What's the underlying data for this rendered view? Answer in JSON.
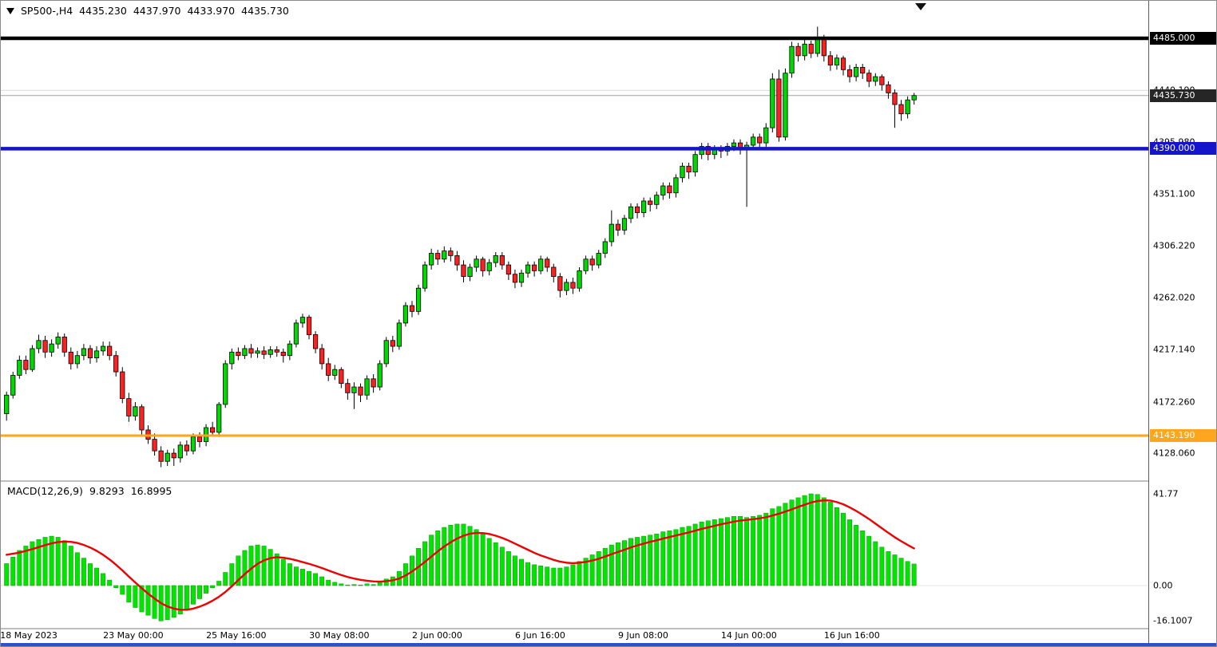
{
  "header": {
    "symbol_period": "SP500-,H4",
    "open": "4435.230",
    "high": "4437.970",
    "low": "4433.970",
    "close": "4435.730"
  },
  "macd_header": {
    "label": "MACD(12,26,9)",
    "main_value": "9.8293",
    "signal_value": "16.8995"
  },
  "price_axis": {
    "plain_labels": [
      {
        "text": "4440.190",
        "price": 4440.19
      },
      {
        "text": "4395.980",
        "price": 4395.98
      },
      {
        "text": "4351.100",
        "price": 4351.1
      },
      {
        "text": "4306.220",
        "price": 4306.22
      },
      {
        "text": "4262.020",
        "price": 4262.02
      },
      {
        "text": "4217.140",
        "price": 4217.14
      },
      {
        "text": "4172.260",
        "price": 4172.26
      },
      {
        "text": "4128.060",
        "price": 4128.06
      }
    ],
    "tags": [
      {
        "text": "4485.000",
        "price": 4485.0,
        "bg": "#000000"
      },
      {
        "text": "4435.730",
        "price": 4435.73,
        "bg": "#262626"
      },
      {
        "text": "4390.000",
        "price": 4390.0,
        "bg": "#1414cc"
      },
      {
        "text": "4143.190",
        "price": 4143.19,
        "bg": "#ffa51e"
      }
    ]
  },
  "macd_axis": {
    "labels": [
      {
        "text": "41.77",
        "value": 41.77
      },
      {
        "text": "0.00",
        "value": 0.0
      },
      {
        "text": "-16.1007",
        "value": -16.1007
      }
    ]
  },
  "time_axis": {
    "labels": [
      {
        "text": "18 May 2023",
        "bar": 0
      },
      {
        "text": "23 May 00:00",
        "bar": 16
      },
      {
        "text": "25 May 16:00",
        "bar": 32
      },
      {
        "text": "30 May 08:00",
        "bar": 48
      },
      {
        "text": "2 Jun 00:00",
        "bar": 64
      },
      {
        "text": "6 Jun 16:00",
        "bar": 80
      },
      {
        "text": "9 Jun 08:00",
        "bar": 96
      },
      {
        "text": "14 Jun 00:00",
        "bar": 112
      },
      {
        "text": "16 Jun 16:00",
        "bar": 128
      }
    ]
  },
  "colors": {
    "background": "#ffffff",
    "candle_up": "#00d900",
    "candle_down": "#ff2020",
    "candle_outline": "#000000",
    "macd_histogram": "#00e400",
    "macd_histogram_edge": "#00a000",
    "macd_signal": "#ee0000",
    "hline_black": "#000000",
    "hline_blue": "#1414cc",
    "hline_orange": "#ffa51e",
    "current_price_line": "#a0a0a0",
    "gridline": "#d8d8d8",
    "separator": "#7d7d7d",
    "tag_text": "#ffffff",
    "bottom_bar": "#2e4fd2"
  },
  "chart_data": {
    "type": "candlestick",
    "symbol": "SP500-",
    "timeframe": "H4",
    "title": "SP500-,H4 4435.230 4437.970 4433.970 4435.730",
    "current_price": 4435.73,
    "current_bar": {
      "open": 4435.23,
      "high": 4437.97,
      "low": 4433.97,
      "close": 4435.73
    },
    "visible_price_range": {
      "high": 4517,
      "low": 4104
    },
    "x_range": {
      "start": "18 May 2023",
      "end": "20 Jun 2023",
      "bars_visible": 142
    },
    "horizontal_lines": [
      {
        "price": 4485.0,
        "color": "#000000",
        "width": 4.5,
        "label": "4485.000"
      },
      {
        "price": 4390.0,
        "color": "#1414cc",
        "width": 4.5,
        "label": "4390.000"
      },
      {
        "price": 4143.19,
        "color": "#ffa51e",
        "width": 3,
        "label": "4143.190"
      }
    ],
    "candles": [
      [
        4162,
        4181,
        4156,
        4178
      ],
      [
        4178,
        4198,
        4175,
        4195
      ],
      [
        4195,
        4212,
        4192,
        4208
      ],
      [
        4208,
        4212,
        4196,
        4200
      ],
      [
        4200,
        4221,
        4198,
        4218
      ],
      [
        4218,
        4230,
        4214,
        4225
      ],
      [
        4225,
        4229,
        4210,
        4215
      ],
      [
        4215,
        4226,
        4211,
        4222
      ],
      [
        4222,
        4232,
        4218,
        4228
      ],
      [
        4228,
        4231,
        4211,
        4215
      ],
      [
        4215,
        4219,
        4200,
        4205
      ],
      [
        4205,
        4216,
        4201,
        4212
      ],
      [
        4212,
        4222,
        4208,
        4218
      ],
      [
        4218,
        4221,
        4205,
        4210
      ],
      [
        4210,
        4220,
        4206,
        4216
      ],
      [
        4216,
        4224,
        4212,
        4220
      ],
      [
        4220,
        4224,
        4208,
        4212
      ],
      [
        4212,
        4216,
        4194,
        4198
      ],
      [
        4198,
        4202,
        4171,
        4175
      ],
      [
        4175,
        4180,
        4155,
        4160
      ],
      [
        4160,
        4172,
        4156,
        4168
      ],
      [
        4168,
        4170,
        4144,
        4148
      ],
      [
        4148,
        4152,
        4136,
        4140
      ],
      [
        4140,
        4145,
        4126,
        4130
      ],
      [
        4130,
        4134,
        4116,
        4121
      ],
      [
        4121,
        4131,
        4117,
        4128
      ],
      [
        4128,
        4132,
        4117,
        4124
      ],
      [
        4124,
        4138,
        4120,
        4135
      ],
      [
        4135,
        4139,
        4126,
        4130
      ],
      [
        4130,
        4145,
        4127,
        4142
      ],
      [
        4142,
        4146,
        4133,
        4138
      ],
      [
        4138,
        4153,
        4134,
        4150
      ],
      [
        4150,
        4155,
        4143,
        4146
      ],
      [
        4146,
        4172,
        4142,
        4170
      ],
      [
        4170,
        4208,
        4167,
        4205
      ],
      [
        4205,
        4218,
        4200,
        4215
      ],
      [
        4215,
        4219,
        4208,
        4212
      ],
      [
        4212,
        4221,
        4209,
        4218
      ],
      [
        4218,
        4222,
        4210,
        4214
      ],
      [
        4214,
        4219,
        4210,
        4216
      ],
      [
        4216,
        4220,
        4209,
        4213
      ],
      [
        4213,
        4220,
        4210,
        4217
      ],
      [
        4217,
        4220,
        4211,
        4215
      ],
      [
        4215,
        4218,
        4206,
        4212
      ],
      [
        4212,
        4225,
        4208,
        4222
      ],
      [
        4222,
        4243,
        4219,
        4240
      ],
      [
        4240,
        4248,
        4236,
        4245
      ],
      [
        4245,
        4247,
        4226,
        4230
      ],
      [
        4230,
        4233,
        4214,
        4218
      ],
      [
        4218,
        4222,
        4200,
        4205
      ],
      [
        4205,
        4210,
        4190,
        4195
      ],
      [
        4195,
        4204,
        4191,
        4200
      ],
      [
        4200,
        4202,
        4184,
        4188
      ],
      [
        4188,
        4192,
        4174,
        4180
      ],
      [
        4180,
        4189,
        4166,
        4185
      ],
      [
        4185,
        4188,
        4172,
        4178
      ],
      [
        4178,
        4195,
        4174,
        4192
      ],
      [
        4192,
        4196,
        4180,
        4185
      ],
      [
        4185,
        4208,
        4182,
        4205
      ],
      [
        4205,
        4228,
        4202,
        4225
      ],
      [
        4225,
        4229,
        4215,
        4220
      ],
      [
        4220,
        4243,
        4217,
        4240
      ],
      [
        4240,
        4258,
        4237,
        4255
      ],
      [
        4255,
        4259,
        4245,
        4250
      ],
      [
        4250,
        4273,
        4247,
        4270
      ],
      [
        4270,
        4293,
        4267,
        4290
      ],
      [
        4290,
        4304,
        4286,
        4300
      ],
      [
        4300,
        4303,
        4290,
        4295
      ],
      [
        4295,
        4306,
        4292,
        4302
      ],
      [
        4302,
        4305,
        4293,
        4298
      ],
      [
        4298,
        4302,
        4285,
        4290
      ],
      [
        4290,
        4294,
        4275,
        4280
      ],
      [
        4280,
        4291,
        4276,
        4288
      ],
      [
        4288,
        4298,
        4284,
        4295
      ],
      [
        4295,
        4297,
        4280,
        4285
      ],
      [
        4285,
        4295,
        4281,
        4292
      ],
      [
        4292,
        4301,
        4288,
        4298
      ],
      [
        4298,
        4301,
        4286,
        4290
      ],
      [
        4290,
        4293,
        4277,
        4282
      ],
      [
        4282,
        4286,
        4270,
        4275
      ],
      [
        4275,
        4286,
        4271,
        4283
      ],
      [
        4283,
        4293,
        4279,
        4290
      ],
      [
        4290,
        4293,
        4280,
        4285
      ],
      [
        4285,
        4298,
        4282,
        4295
      ],
      [
        4295,
        4297,
        4284,
        4288
      ],
      [
        4288,
        4291,
        4275,
        4280
      ],
      [
        4280,
        4283,
        4262,
        4268
      ],
      [
        4268,
        4278,
        4264,
        4275
      ],
      [
        4275,
        4279,
        4265,
        4270
      ],
      [
        4270,
        4288,
        4267,
        4285
      ],
      [
        4285,
        4298,
        4282,
        4295
      ],
      [
        4295,
        4298,
        4285,
        4290
      ],
      [
        4290,
        4303,
        4287,
        4300
      ],
      [
        4300,
        4313,
        4296,
        4310
      ],
      [
        4310,
        4337,
        4306,
        4325
      ],
      [
        4325,
        4329,
        4315,
        4320
      ],
      [
        4320,
        4333,
        4316,
        4330
      ],
      [
        4330,
        4343,
        4326,
        4340
      ],
      [
        4340,
        4343,
        4330,
        4335
      ],
      [
        4335,
        4348,
        4331,
        4345
      ],
      [
        4345,
        4348,
        4336,
        4342
      ],
      [
        4342,
        4353,
        4338,
        4350
      ],
      [
        4350,
        4361,
        4346,
        4358
      ],
      [
        4358,
        4361,
        4347,
        4352
      ],
      [
        4352,
        4368,
        4348,
        4365
      ],
      [
        4365,
        4378,
        4361,
        4375
      ],
      [
        4375,
        4378,
        4364,
        4370
      ],
      [
        4370,
        4388,
        4366,
        4385
      ],
      [
        4385,
        4395,
        4381,
        4392
      ],
      [
        4392,
        4395,
        4380,
        4385
      ],
      [
        4385,
        4393,
        4381,
        4390
      ],
      [
        4390,
        4393,
        4382,
        4388
      ],
      [
        4388,
        4395,
        4384,
        4392
      ],
      [
        4392,
        4398,
        4388,
        4395
      ],
      [
        4395,
        4398,
        4385,
        4390
      ],
      [
        4390,
        4396,
        4340,
        4393
      ],
      [
        4393,
        4403,
        4389,
        4400
      ],
      [
        4400,
        4403,
        4390,
        4395
      ],
      [
        4395,
        4412,
        4391,
        4408
      ],
      [
        4408,
        4455,
        4404,
        4450
      ],
      [
        4450,
        4458,
        4396,
        4400
      ],
      [
        4400,
        4459,
        4397,
        4455
      ],
      [
        4455,
        4482,
        4451,
        4478
      ],
      [
        4478,
        4481,
        4465,
        4470
      ],
      [
        4470,
        4484,
        4466,
        4480
      ],
      [
        4480,
        4483,
        4468,
        4472
      ],
      [
        4472,
        4495,
        4469,
        4485
      ],
      [
        4485,
        4488,
        4465,
        4470
      ],
      [
        4470,
        4474,
        4457,
        4462
      ],
      [
        4462,
        4471,
        4458,
        4468
      ],
      [
        4468,
        4470,
        4453,
        4458
      ],
      [
        4458,
        4462,
        4447,
        4452
      ],
      [
        4452,
        4463,
        4448,
        4460
      ],
      [
        4460,
        4463,
        4450,
        4455
      ],
      [
        4455,
        4458,
        4443,
        4448
      ],
      [
        4448,
        4455,
        4444,
        4452
      ],
      [
        4452,
        4454,
        4440,
        4445
      ],
      [
        4445,
        4448,
        4433,
        4438
      ],
      [
        4438,
        4441,
        4408,
        4428
      ],
      [
        4428,
        4432,
        4414,
        4420
      ],
      [
        4420,
        4435,
        4416,
        4432
      ],
      [
        4432,
        4438,
        4428,
        4435.73
      ]
    ],
    "macd": {
      "name": "MACD",
      "params": [
        12,
        26,
        9
      ],
      "last_main": 9.8293,
      "last_signal": 16.8995,
      "axis_max": 41.77,
      "axis_min": -16.1007,
      "histogram": [
        10,
        13,
        16,
        18,
        20,
        21,
        22,
        22.5,
        22,
        20.5,
        18,
        15,
        12.5,
        10,
        8,
        5.5,
        2.5,
        -1,
        -4,
        -7.5,
        -10,
        -12,
        -13.5,
        -15,
        -16.1007,
        -15.5,
        -14.5,
        -13,
        -11,
        -8.5,
        -6,
        -3.5,
        -1,
        2,
        6,
        10,
        13.5,
        16,
        18,
        18.5,
        18,
        16.5,
        14.5,
        12,
        10,
        8.5,
        7.5,
        6.5,
        5.5,
        4,
        2.5,
        1.5,
        0.8,
        0.3,
        0.5,
        0.3,
        0.8,
        0.5,
        1.5,
        3,
        4,
        6.5,
        10,
        13.5,
        17,
        20,
        23,
        25,
        26.5,
        27.5,
        28,
        28,
        27,
        25.5,
        23.5,
        21.5,
        19.5,
        17.5,
        15.5,
        13.5,
        12,
        10.5,
        9.5,
        9,
        8.5,
        8,
        8,
        8.5,
        9.5,
        11,
        12.5,
        14,
        15.5,
        17,
        18.5,
        19.5,
        20.5,
        21.5,
        22,
        22.5,
        23,
        23.5,
        24.5,
        25,
        25.5,
        26.5,
        27,
        28,
        29,
        29.5,
        30,
        30.5,
        31,
        31.5,
        31.5,
        31,
        31.5,
        32,
        33,
        35,
        36,
        37.5,
        39,
        40,
        41,
        41.77,
        41.5,
        40,
        38,
        35.5,
        33,
        30,
        27.5,
        25,
        22.5,
        20,
        17.5,
        15.5,
        14,
        12.5,
        11,
        9.8293
      ],
      "signal": [
        14,
        14.5,
        15,
        15.8,
        16.6,
        17.5,
        18.4,
        19.2,
        19.8,
        20,
        19.9,
        19.4,
        18.5,
        17.3,
        15.8,
        14,
        11.9,
        9.5,
        6.9,
        4.1,
        1.4,
        -1.2,
        -3.7,
        -5.9,
        -8,
        -9.5,
        -10.5,
        -11,
        -11,
        -10.5,
        -9.6,
        -8.4,
        -6.9,
        -5.1,
        -2.9,
        -0.3,
        2.5,
        5.2,
        7.7,
        9.9,
        11.5,
        12.5,
        12.9,
        12.7,
        12.2,
        11.5,
        10.7,
        9.9,
        9,
        8,
        6.9,
        5.8,
        4.8,
        3.9,
        3.2,
        2.6,
        2.2,
        1.9,
        1.8,
        2,
        2.4,
        3.2,
        4.6,
        6.4,
        8.5,
        10.8,
        13.2,
        15.6,
        17.8,
        19.7,
        21.4,
        22.7,
        23.6,
        24,
        23.9,
        23.5,
        22.7,
        21.7,
        20.5,
        19.1,
        17.7,
        16.3,
        14.9,
        13.7,
        12.7,
        11.7,
        10.9,
        10.4,
        10.2,
        10.4,
        10.8,
        11.4,
        12.2,
        13.2,
        14.3,
        15.3,
        16.3,
        17.4,
        18.3,
        19.1,
        19.9,
        20.6,
        21.4,
        22.1,
        22.8,
        23.5,
        24.2,
        25,
        25.8,
        26.5,
        27.2,
        27.9,
        28.5,
        29.1,
        29.6,
        29.9,
        30.2,
        30.6,
        31.1,
        31.9,
        32.7,
        33.7,
        34.7,
        35.8,
        36.8,
        37.8,
        38.5,
        38.8,
        38.7,
        38,
        37,
        35.6,
        34,
        32.2,
        30.3,
        28.2,
        26.1,
        24,
        22,
        20.2,
        18.5,
        16.8995
      ]
    }
  }
}
